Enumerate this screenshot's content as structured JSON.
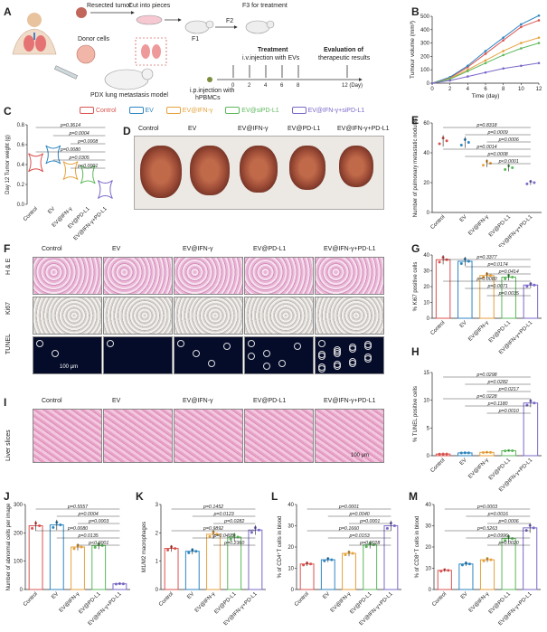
{
  "panel_letters": [
    "A",
    "B",
    "C",
    "D",
    "E",
    "F",
    "G",
    "H",
    "I",
    "J",
    "K",
    "L",
    "M"
  ],
  "schematic": {
    "resected_tumor": "Resected tumor",
    "cut_into_pieces": "Cut into pieces",
    "donor_cells": "Donor cells",
    "f1": "F1",
    "f2": "F2",
    "f3": "F3 for treatment",
    "model": "PDX lung metastasis model",
    "ip_injection_1": "i.p.injection with",
    "ip_injection_2": "hPBMCs",
    "treatment_1": "Treatment",
    "treatment_2": "i.v.injection with EVs",
    "evaluation_1": "Evaluation of",
    "evaluation_2": "therapeutic results",
    "timeline_ticks": [
      "0",
      "2",
      "4",
      "6",
      "8",
      "12 (Day)"
    ]
  },
  "legend": {
    "items": [
      {
        "label": "Control",
        "color": "#d9534f"
      },
      {
        "label": "EV",
        "color": "#2e86c1"
      },
      {
        "label": "EV@IFN-γ",
        "color": "#e6a23c"
      },
      {
        "label": "EV@siPD-L1",
        "color": "#5cb85c"
      },
      {
        "label": "EV@IFN-γ+siPD-L1",
        "color": "#7b68c9"
      }
    ]
  },
  "groups5": [
    "Control",
    "EV",
    "EV@IFN-γ",
    "EV@PD-L1",
    "EV@IFN-γ+PD-L1"
  ],
  "panel_b": {
    "xlabel": "Time (day)",
    "ylabel": "Tumour volume (mm³)",
    "xticks": [
      "0",
      "2",
      "4",
      "6",
      "8",
      "10",
      "12"
    ],
    "yticks": [
      "0",
      "100",
      "200",
      "300",
      "400",
      "500"
    ],
    "x": [
      0,
      2,
      4,
      6,
      8,
      10,
      12
    ],
    "series": [
      {
        "color": "#d9534f",
        "values": [
          0,
          40,
          120,
          220,
          320,
          420,
          470
        ]
      },
      {
        "color": "#2e86c1",
        "values": [
          0,
          45,
          130,
          240,
          340,
          440,
          505
        ]
      },
      {
        "color": "#e6a23c",
        "values": [
          0,
          35,
          100,
          170,
          240,
          300,
          340
        ]
      },
      {
        "color": "#5cb85c",
        "values": [
          0,
          30,
          90,
          150,
          210,
          260,
          300
        ]
      },
      {
        "color": "#7b68c9",
        "values": [
          0,
          20,
          50,
          80,
          110,
          130,
          150
        ]
      }
    ]
  },
  "panel_c": {
    "ylabel": "Day 12 Tumor weight (g)",
    "yticks": [
      "0.0",
      "0.2",
      "0.4",
      "0.6",
      "0.8"
    ],
    "pvalues": [
      "p=0.3614",
      "p=0.0004",
      "p=0.0008",
      "p=0.0080",
      "p=0.0305",
      "p<0.0001"
    ]
  },
  "panel_e": {
    "ylabel": "Number of pulmonary metastatic nodules",
    "yticks": [
      "0",
      "20",
      "40",
      "60"
    ],
    "values": [
      48,
      47,
      33,
      30,
      20
    ],
    "pvalues": [
      "p=0.8318",
      "p=0.0009",
      "p=0.0006",
      "p=0.0014",
      "p=0.0008",
      "p<0.0001"
    ]
  },
  "panel_f": {
    "rows": [
      "H & E",
      "Ki67",
      "TUNEL"
    ],
    "scale": "100 μm"
  },
  "panel_g": {
    "ylabel": "% Ki67 positive cells",
    "yticks": [
      "0",
      "10",
      "20",
      "30",
      "40"
    ],
    "values": [
      37,
      36,
      27,
      26,
      21
    ],
    "pvalues": [
      "p=0.3377",
      "p=0.0174",
      "p=0.0414",
      "p=0.0080",
      "p=0.0071",
      "p=0.0035"
    ]
  },
  "panel_h": {
    "ylabel": "% TUNEL positive cells",
    "yticks": [
      "0",
      "5",
      "10",
      "15"
    ],
    "values": [
      0.3,
      0.5,
      0.6,
      0.9,
      9.5
    ],
    "pvalues": [
      "p=0.0298",
      "p=0.0282",
      "p=0.0217",
      "p=0.0228",
      "p=0.1180",
      "p=0.0010"
    ]
  },
  "panel_i": {
    "row": "Liver slices",
    "scale": "100 μm"
  },
  "panel_j": {
    "ylabel": "Number of abnormal cells per image",
    "yticks": [
      "0",
      "100",
      "200",
      "300"
    ],
    "values": [
      225,
      228,
      150,
      155,
      20
    ],
    "pvalues": [
      "p=0.5557",
      "p=0.0004",
      "p=0.0003",
      "p=0.0080",
      "p=0.0135",
      "p<0.0001"
    ]
  },
  "panel_k": {
    "ylabel": "M1/M2 macrophages",
    "yticks": [
      "0",
      "1",
      "2",
      "3"
    ],
    "values": [
      1.45,
      1.35,
      1.95,
      1.85,
      2.1
    ],
    "pvalues": [
      "p=0.1452",
      "p=0.0123",
      "p=0.0282",
      "p=0.9892",
      "p=0.0495",
      "p=0.2360"
    ]
  },
  "panel_l": {
    "ylabel": "% of CD4⁺T cells in blood",
    "yticks": [
      "0",
      "10",
      "20",
      "30",
      "40"
    ],
    "values": [
      12,
      14,
      17,
      21,
      30
    ],
    "pvalues": [
      "p=0.0001",
      "p=0.0040",
      "p=0.0001",
      "p=0.1660",
      "p=0.0153",
      "p=0.0028"
    ]
  },
  "panel_m": {
    "ylabel": "% of CD8⁺T cells in blood",
    "yticks": [
      "0",
      "10",
      "20",
      "30",
      "40"
    ],
    "values": [
      9,
      12,
      14,
      24,
      29
    ],
    "pvalues": [
      "p=0.0003",
      "p=0.0016",
      "p=0.0006",
      "p=0.5263",
      "p=0.0996",
      "p=0.0020"
    ]
  },
  "colors": {
    "control": "#d9534f",
    "ev": "#2e86c1",
    "ifn": "#e6a23c",
    "pdl1": "#5cb85c",
    "combo": "#7b68c9"
  }
}
